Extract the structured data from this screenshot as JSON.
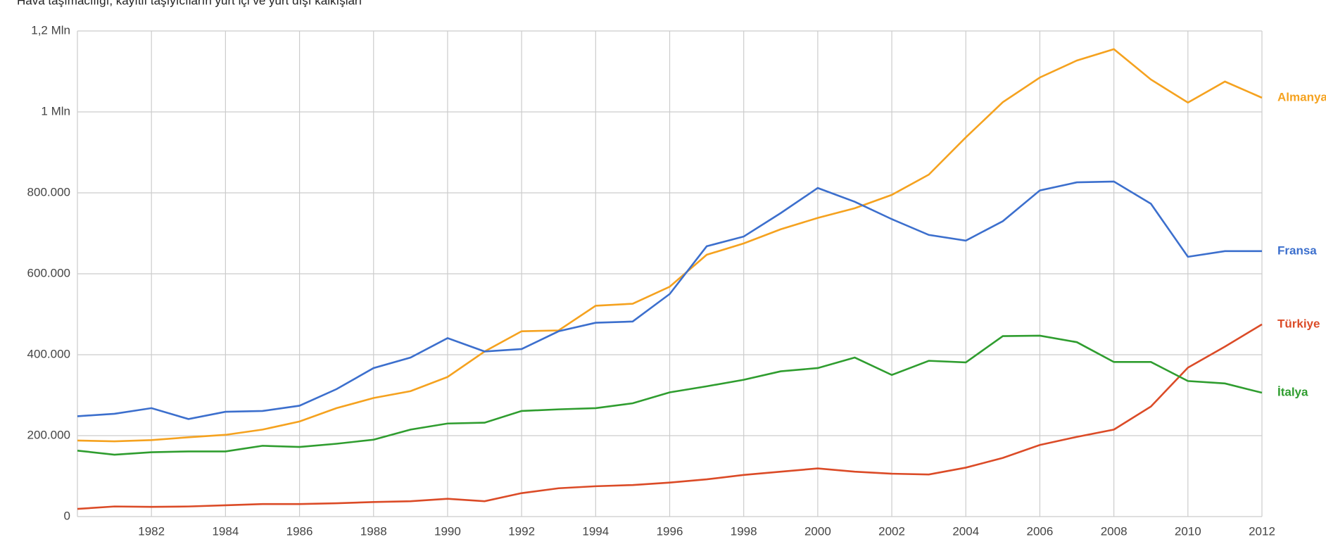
{
  "chart_data": {
    "type": "line",
    "title": "Hava taşımacılığı, kayıtlı taşıyıcıların yurt içi ve yurt dışı kalkışları",
    "x": [
      1980,
      1981,
      1982,
      1983,
      1984,
      1985,
      1986,
      1987,
      1988,
      1989,
      1990,
      1991,
      1992,
      1993,
      1994,
      1995,
      1996,
      1997,
      1998,
      1999,
      2000,
      2001,
      2002,
      2003,
      2004,
      2005,
      2006,
      2007,
      2008,
      2009,
      2010,
      2011,
      2012
    ],
    "xlim": [
      1980,
      2012
    ],
    "xticks": [
      1982,
      1984,
      1986,
      1988,
      1990,
      1992,
      1994,
      1996,
      1998,
      2000,
      2002,
      2004,
      2006,
      2008,
      2010,
      2012
    ],
    "ylim": [
      0,
      1200000
    ],
    "yticks": [
      0,
      {
        "value": 200000,
        "label": "200.000"
      },
      {
        "value": 400000,
        "label": "400.000"
      },
      {
        "value": 600000,
        "label": "600.000"
      },
      {
        "value": 800000,
        "label": "800.000"
      },
      {
        "value": 1000000,
        "label": "1 Mln"
      },
      {
        "value": 1200000,
        "label": "1,2 Mln"
      }
    ],
    "grid": true,
    "series": [
      {
        "name": "Almanya",
        "color": "#f5a21f",
        "values": [
          188000,
          186000,
          189000,
          196000,
          202000,
          215000,
          235000,
          268000,
          293000,
          310000,
          345000,
          408000,
          458000,
          460000,
          521000,
          526000,
          568000,
          647000,
          675000,
          710000,
          738000,
          762000,
          795000,
          845000,
          937000,
          1024000,
          1085000,
          1127000,
          1155000,
          1080000,
          1023000,
          1075000,
          1035000
        ]
      },
      {
        "name": "Fransa",
        "color": "#3c6fcd",
        "values": [
          248000,
          254000,
          268000,
          241000,
          259000,
          261000,
          274000,
          315000,
          367000,
          393000,
          441000,
          408000,
          414000,
          458000,
          479000,
          482000,
          550000,
          668000,
          692000,
          750000,
          812000,
          778000,
          735000,
          696000,
          682000,
          730000,
          806000,
          826000,
          828000,
          773000,
          642000,
          656000,
          656000
        ]
      },
      {
        "name": "Türkiye",
        "color": "#db4b27",
        "values": [
          19000,
          25000,
          24000,
          25000,
          28000,
          31000,
          31000,
          33000,
          36000,
          38000,
          44000,
          38000,
          58000,
          70000,
          75000,
          78000,
          84000,
          92000,
          103000,
          111000,
          119000,
          111000,
          106000,
          104000,
          121000,
          145000,
          177000,
          197000,
          215000,
          272000,
          368000,
          420000,
          475000
        ]
      },
      {
        "name": "İtalya",
        "color": "#2f9d2f",
        "values": [
          163000,
          153000,
          159000,
          161000,
          161000,
          175000,
          172000,
          180000,
          190000,
          215000,
          230000,
          232000,
          261000,
          265000,
          268000,
          280000,
          307000,
          322000,
          338000,
          359000,
          367000,
          393000,
          350000,
          385000,
          381000,
          446000,
          447000,
          431000,
          382000,
          382000,
          335000,
          329000,
          306000
        ]
      }
    ]
  }
}
